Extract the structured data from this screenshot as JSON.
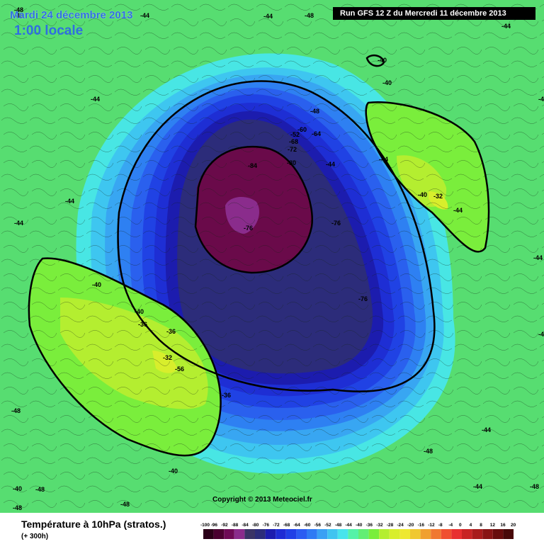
{
  "header": {
    "date": "Mardi 24 décembre 2013",
    "local_hour": "1:00 locale",
    "run": "Run GFS 12 Z du Mercredi 11 décembre 2013"
  },
  "footer": {
    "title": "Température à 10hPa (stratos.)",
    "lead": "(+ 300h)",
    "copyright": "Copyright © 2013 Meteociel.fr"
  },
  "legend": {
    "values": [
      "-100",
      "-96",
      "-92",
      "-88",
      "-84",
      "-80",
      "-76",
      "-72",
      "-68",
      "-64",
      "-60",
      "-56",
      "-52",
      "-48",
      "-44",
      "-40",
      "-36",
      "-32",
      "-28",
      "-24",
      "-20",
      "-16",
      "-12",
      "-8",
      "-4",
      "0",
      "4",
      "8",
      "12",
      "16",
      "20"
    ],
    "colors": [
      "#2a0018",
      "#4a0030",
      "#6e0a56",
      "#8a2c8c",
      "#3a3366",
      "#2c2c7a",
      "#1c1cae",
      "#1e2cd4",
      "#2040e6",
      "#2a5cf2",
      "#2f7af4",
      "#3aa0f4",
      "#40c4f0",
      "#48e4ec",
      "#54f2a8",
      "#62ee74",
      "#7aee3c",
      "#b4ee30",
      "#d8ee2c",
      "#eee830",
      "#f0c830",
      "#f0a030",
      "#f07830",
      "#f05030",
      "#e83030",
      "#c82424",
      "#a81c1c",
      "#881414",
      "#680c0c",
      "#480808"
    ]
  },
  "labels": {
    "isotherms": [
      "-44",
      "-44",
      "-44",
      "-44",
      "-44",
      "-44",
      "-44",
      "-44",
      "-44",
      "-44",
      "-44",
      "-44",
      "-44",
      "-48",
      "-48",
      "-48",
      "-48",
      "-48",
      "-48",
      "-48",
      "-48",
      "-48",
      "-48",
      "-48",
      "-40",
      "-40",
      "-40",
      "-40",
      "-40",
      "-40",
      "-40",
      "-36",
      "-36",
      "-36",
      "-32",
      "-32",
      "-56",
      "-60",
      "-52",
      "-64",
      "-68",
      "-72",
      "-80",
      "-84",
      "-76",
      "-76",
      "-76"
    ]
  }
}
